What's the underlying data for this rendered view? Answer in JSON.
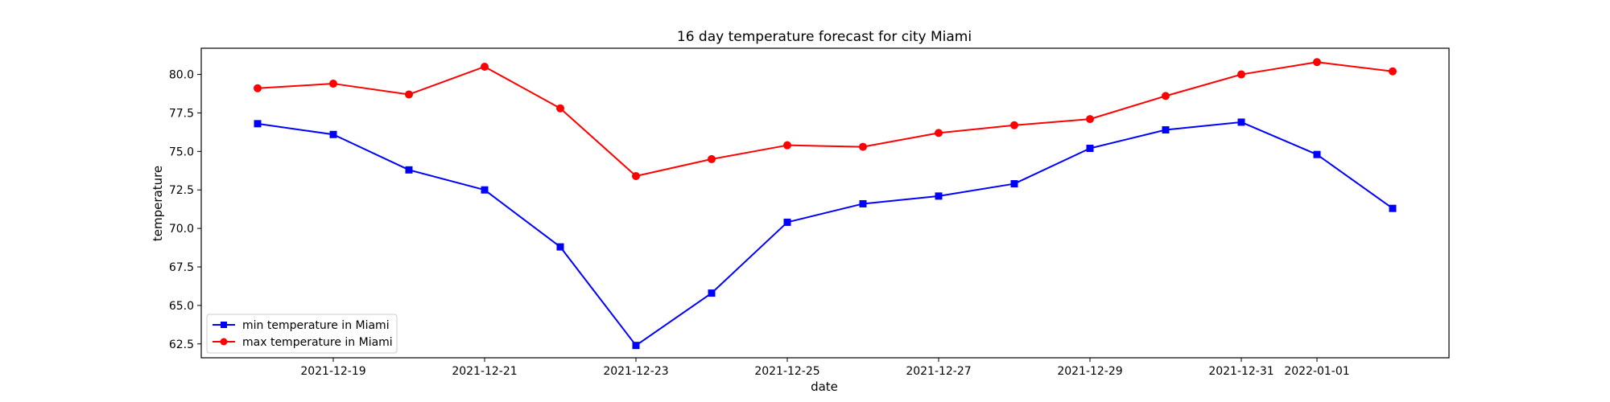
{
  "chart_data": {
    "type": "line",
    "title": "16 day temperature forecast for city Miami",
    "xlabel": "date",
    "ylabel": "temperature",
    "x": [
      "2021-12-18",
      "2021-12-19",
      "2021-12-20",
      "2021-12-21",
      "2021-12-22",
      "2021-12-23",
      "2021-12-24",
      "2021-12-25",
      "2021-12-26",
      "2021-12-27",
      "2021-12-28",
      "2021-12-29",
      "2021-12-30",
      "2021-12-31",
      "2022-01-01",
      "2022-01-02"
    ],
    "x_tick_labels": [
      "2021-12-19",
      "2021-12-21",
      "2021-12-23",
      "2021-12-25",
      "2021-12-27",
      "2021-12-29",
      "2021-12-31",
      "2022-01-01"
    ],
    "y_tick_labels": [
      "62.5",
      "65.0",
      "67.5",
      "70.0",
      "72.5",
      "75.0",
      "77.5",
      "80.0"
    ],
    "ylim": [
      61.6,
      81.7
    ],
    "grid": false,
    "legend_position": "lower-left",
    "series": [
      {
        "name": "min temperature in Miami",
        "color": "#0000ff",
        "marker": "square",
        "values": [
          76.8,
          76.1,
          73.8,
          72.5,
          68.8,
          62.4,
          65.8,
          70.4,
          71.6,
          72.1,
          72.9,
          75.2,
          76.4,
          76.9,
          74.8,
          71.3
        ]
      },
      {
        "name": "max temperature in Miami",
        "color": "#ff0000",
        "marker": "circle",
        "values": [
          79.1,
          79.4,
          78.7,
          80.5,
          77.8,
          73.4,
          74.5,
          75.4,
          75.3,
          76.2,
          76.7,
          77.1,
          78.6,
          80.0,
          80.8,
          80.2
        ]
      }
    ]
  }
}
